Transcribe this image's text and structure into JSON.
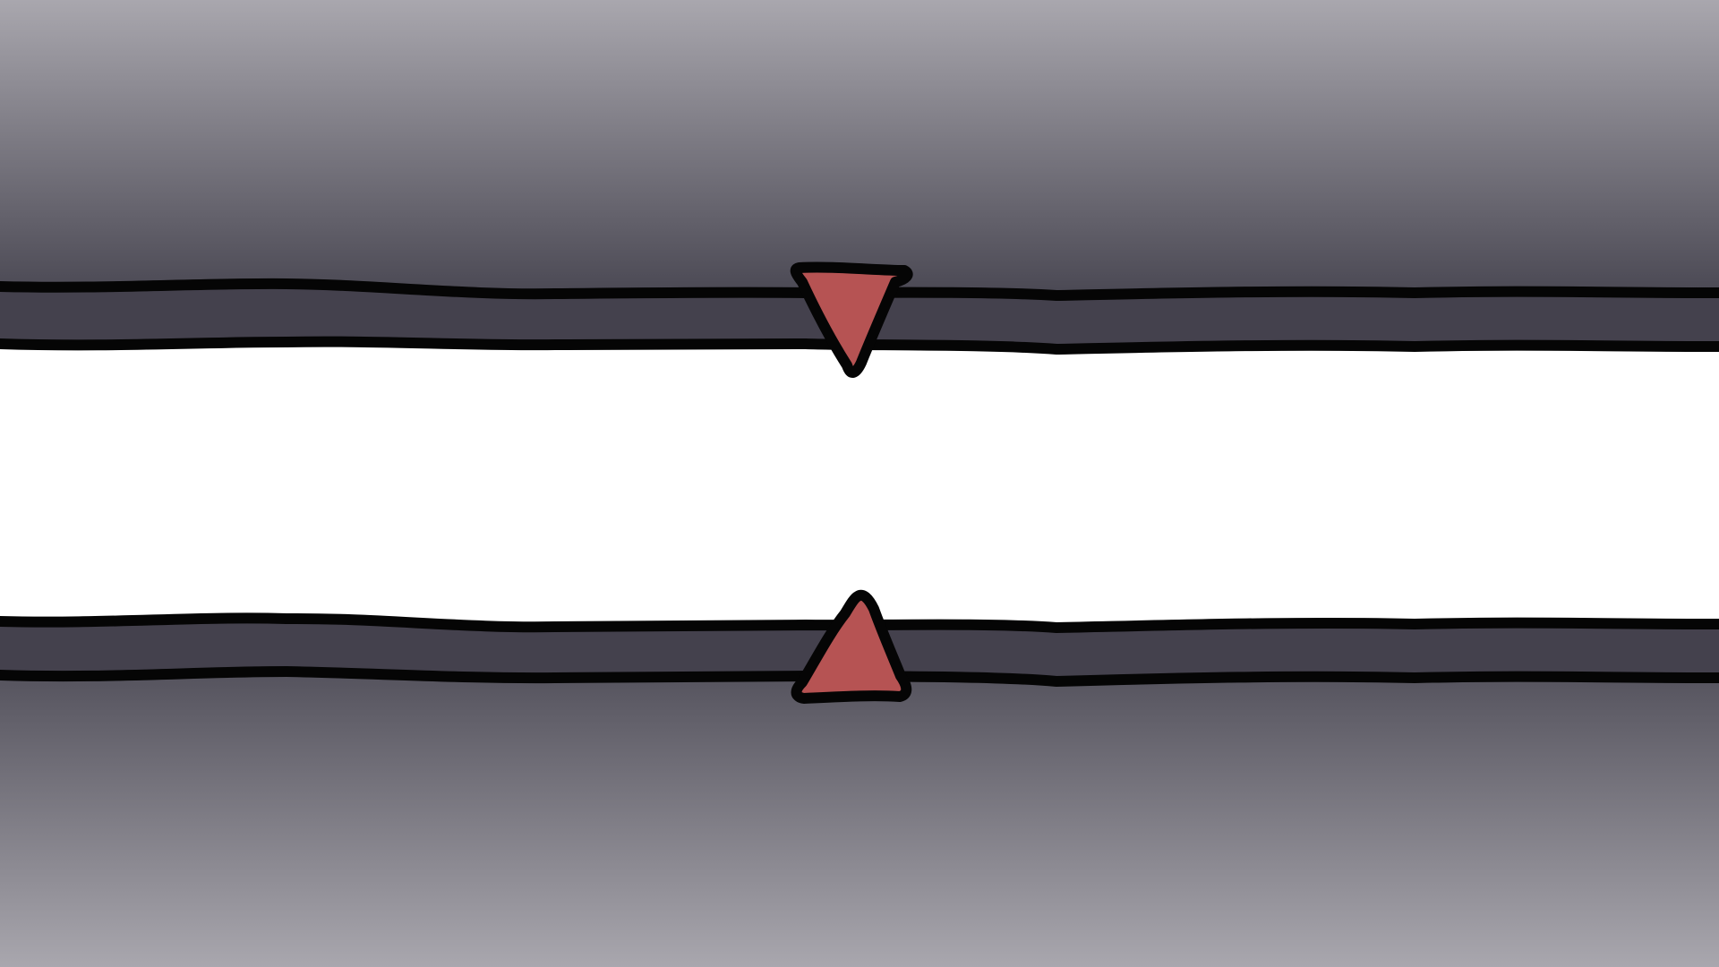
{
  "scene": {
    "type": "wheel-selector-frame",
    "center_area_color": "#ffffff",
    "vignette_outer_color": "#a9a7ae",
    "vignette_inner_color": "#4a4853",
    "track_color": "#44414d",
    "outline_color": "#050505",
    "marker_color": "#b65353",
    "markers": [
      {
        "name": "top-selector-marker",
        "direction": "down",
        "icon": "triangle-down-icon"
      },
      {
        "name": "bottom-selector-marker",
        "direction": "up",
        "icon": "triangle-up-icon"
      }
    ]
  }
}
